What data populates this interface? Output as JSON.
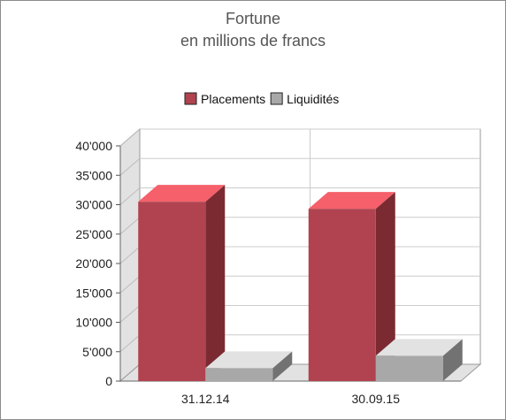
{
  "chart_data": {
    "type": "bar",
    "title": "Fortune",
    "subtitle": "en millions de francs",
    "categories": [
      "31.12.14",
      "30.09.15"
    ],
    "series": [
      {
        "name": "Placements",
        "values": [
          30500,
          29300
        ],
        "color": "#b0434f",
        "top_color": "#f5606a",
        "side_color": "#7b2a32"
      },
      {
        "name": "Liquidités",
        "values": [
          2200,
          4300
        ],
        "color": "#a8a8a8",
        "top_color": "#e2e2e2",
        "side_color": "#727272"
      }
    ],
    "ylim": [
      0,
      40000
    ],
    "yticks": [
      0,
      5000,
      10000,
      15000,
      20000,
      25000,
      30000,
      35000,
      40000
    ],
    "ytick_labels": [
      "0",
      "5'000",
      "10'000",
      "15'000",
      "20'000",
      "25'000",
      "30'000",
      "35'000",
      "40'000"
    ],
    "grid": true,
    "legend": "top-center"
  }
}
